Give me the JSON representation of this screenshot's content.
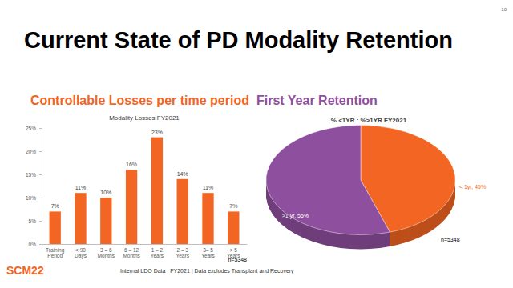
{
  "slide": {
    "title": "Current State of PD Modality Retention",
    "headings": [
      "Controllable Losses per time period",
      "First Year Retention"
    ],
    "footer": "Internal LDO Data_ FY2021  |  Data excludes Transplant and Recovery",
    "page_number": "10",
    "logo": "SCM22"
  },
  "chart_data": [
    {
      "type": "bar",
      "title": "Modality Losses FY2021",
      "categories": [
        "Training Period",
        "< 90 Days",
        "3 – 6 Months",
        "6 – 12 Months",
        "1 – 2 Years",
        "2 – 3 Years",
        "3– 5 Years",
        "> 5 Years"
      ],
      "values": [
        7,
        11,
        10,
        16,
        23,
        14,
        11,
        7
      ],
      "value_labels": [
        "7%",
        "11%",
        "10%",
        "16%",
        "23%",
        "14%",
        "11%",
        "7%"
      ],
      "color": "#f26522",
      "ylim": [
        0,
        25
      ],
      "yticks": [
        {
          "value": 0,
          "label": "0%"
        },
        {
          "value": 5,
          "label": "5%"
        },
        {
          "value": 10,
          "label": "10%"
        },
        {
          "value": 15,
          "label": "15%"
        },
        {
          "value": 20,
          "label": "20%"
        },
        {
          "value": 25,
          "label": "25%"
        }
      ],
      "grid": false,
      "data_labels": true,
      "annotation": "n=5348"
    },
    {
      "type": "pie",
      "title": "% <1YR : %>1YR FY2021",
      "values": [
        45,
        55
      ],
      "value_labels": [
        "< 1yr, 45%",
        ">1 yr, 55%"
      ],
      "colors": [
        "#f26522",
        "#8e4f9e"
      ],
      "data_labels": true,
      "annotation": "n=5348"
    }
  ]
}
